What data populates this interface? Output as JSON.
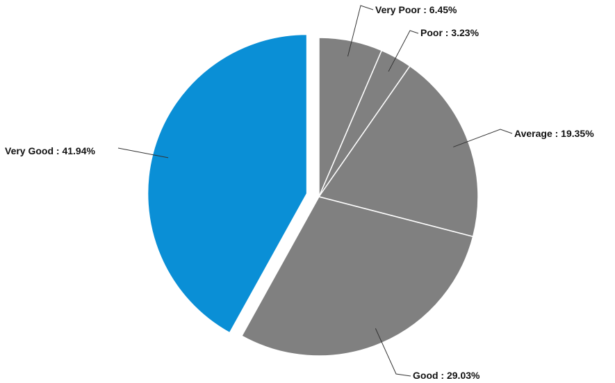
{
  "chart_data": {
    "type": "pie",
    "title": "",
    "slices": [
      {
        "name": "Very Poor",
        "value": 6.45,
        "label": "Very Poor : 6.45%",
        "color": "#808080",
        "exploded": false
      },
      {
        "name": "Poor",
        "value": 3.23,
        "label": "Poor : 3.23%",
        "color": "#808080",
        "exploded": false
      },
      {
        "name": "Average",
        "value": 19.35,
        "label": "Average : 19.35%",
        "color": "#808080",
        "exploded": false
      },
      {
        "name": "Good",
        "value": 29.03,
        "label": "Good : 29.03%",
        "color": "#808080",
        "exploded": false
      },
      {
        "name": "Very Good",
        "value": 41.94,
        "label": "Very Good : 41.94%",
        "color": "#0a8fd6",
        "exploded": true
      }
    ],
    "start_angle": "12 o'clock",
    "direction": "clockwise",
    "legend": "none"
  }
}
